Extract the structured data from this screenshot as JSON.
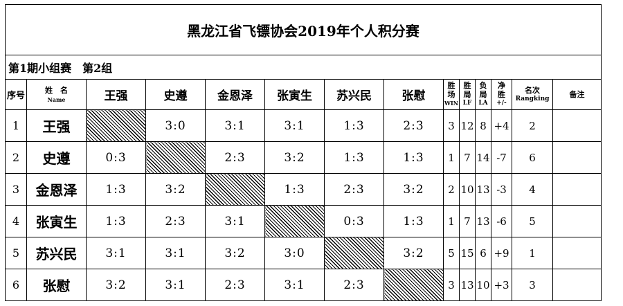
{
  "title": "黑龙江省飞镖协会2019年个人积分赛",
  "group_label": "第1期小组赛　第2组",
  "headers": {
    "seq": "序号",
    "name_cn": "姓　名",
    "name_en": "Name",
    "win_cn": "胜场",
    "win_en": "WIN",
    "lf_cn": "胜局",
    "lf_en": "LF",
    "la_cn": "负局",
    "la_en": "LA",
    "net_cn": "净胜",
    "net_en": "+/-",
    "rank_cn": "名次",
    "rank_en": "Rangking",
    "note": "备注"
  },
  "players": [
    "王强",
    "史遵",
    "金恩泽",
    "张寅生",
    "苏兴民",
    "张慰"
  ],
  "rows": [
    {
      "idx": "1",
      "name": "王强",
      "scores": [
        "",
        "3:0",
        "3:1",
        "3:1",
        "1:3",
        "2:3"
      ],
      "win": "3",
      "lf": "12",
      "la": "8",
      "net": "+4",
      "rank": "2",
      "note": ""
    },
    {
      "idx": "2",
      "name": "史遵",
      "scores": [
        "0:3",
        "",
        "2:3",
        "3:2",
        "1:3",
        "1:3"
      ],
      "win": "1",
      "lf": "7",
      "la": "14",
      "net": "-7",
      "rank": "6",
      "note": ""
    },
    {
      "idx": "3",
      "name": "金恩泽",
      "scores": [
        "1:3",
        "3:2",
        "",
        "1:3",
        "2:3",
        "3:2"
      ],
      "win": "2",
      "lf": "10",
      "la": "13",
      "net": "-3",
      "rank": "4",
      "note": ""
    },
    {
      "idx": "4",
      "name": "张寅生",
      "scores": [
        "1:3",
        "2:3",
        "3:1",
        "",
        "0:3",
        "1:3"
      ],
      "win": "1",
      "lf": "7",
      "la": "13",
      "net": "-6",
      "rank": "5",
      "note": ""
    },
    {
      "idx": "5",
      "name": "苏兴民",
      "scores": [
        "3:1",
        "3:1",
        "3:2",
        "3:0",
        "",
        "3:2"
      ],
      "win": "5",
      "lf": "15",
      "la": "6",
      "net": "+9",
      "rank": "1",
      "note": ""
    },
    {
      "idx": "6",
      "name": "张慰",
      "scores": [
        "3:2",
        "3:1",
        "2:3",
        "3:1",
        "2:3",
        ""
      ],
      "win": "3",
      "lf": "13",
      "la": "10",
      "net": "+3",
      "rank": "3",
      "note": ""
    }
  ]
}
